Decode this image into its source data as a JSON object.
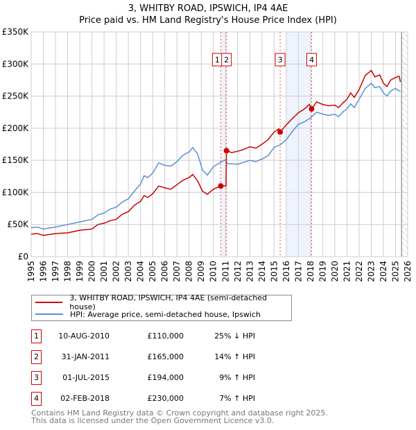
{
  "title_line1": "3, WHITBY ROAD, IPSWICH, IP4 4AE",
  "title_line2": "Price paid vs. HM Land Registry's House Price Index (HPI)",
  "colors": {
    "property": "#cc0000",
    "hpi": "#5b8fd4",
    "shade": "#eef3fc"
  },
  "chart_data": {
    "type": "line",
    "xlim": [
      1995,
      2026
    ],
    "ylim": [
      0,
      350000
    ],
    "yticks": [
      {
        "v": 0,
        "label": "£0"
      },
      {
        "v": 50000,
        "label": "£50K"
      },
      {
        "v": 100000,
        "label": "£100K"
      },
      {
        "v": 150000,
        "label": "£150K"
      },
      {
        "v": 200000,
        "label": "£200K"
      },
      {
        "v": 250000,
        "label": "£250K"
      },
      {
        "v": 300000,
        "label": "£300K"
      },
      {
        "v": 350000,
        "label": "£350K"
      }
    ],
    "xticks": [
      "1995",
      "1996",
      "1997",
      "1998",
      "1999",
      "2000",
      "2001",
      "2002",
      "2003",
      "2004",
      "2005",
      "2006",
      "2007",
      "2008",
      "2009",
      "2010",
      "2011",
      "2012",
      "2013",
      "2014",
      "2015",
      "2016",
      "2017",
      "2018",
      "2019",
      "2020",
      "2021",
      "2022",
      "2023",
      "2024",
      "2025",
      "2026"
    ],
    "grid": true,
    "shaded_ranges": [
      [
        2010.61,
        2011.08
      ],
      [
        2016.0,
        2018.09
      ]
    ],
    "forecast_hatch_from": 2025.5,
    "series": [
      {
        "name": "3, WHITBY ROAD, IPSWICH, IP4 4AE (semi-detached house)",
        "color": "#cc0000",
        "x": [
          1995,
          1995.5,
          1996,
          1997,
          1998,
          1999,
          2000,
          2000.5,
          2001,
          2001.5,
          2002,
          2002.5,
          2003,
          2003.5,
          2004,
          2004.3,
          2004.6,
          2005,
          2005.5,
          2006,
          2006.5,
          2007,
          2007.5,
          2008,
          2008.3,
          2008.7,
          2009.1,
          2009.5,
          2010,
          2010.61,
          2011.05,
          2011.08,
          2011.5,
          2012,
          2012.5,
          2013,
          2013.5,
          2014,
          2014.5,
          2015,
          2015.4,
          2015.5,
          2016,
          2016.5,
          2017,
          2017.5,
          2017.9,
          2018.09,
          2018.5,
          2019,
          2019.5,
          2020,
          2020.3,
          2020.7,
          2021,
          2021.3,
          2021.6,
          2022,
          2022.5,
          2023,
          2023.3,
          2023.7,
          2024,
          2024.3,
          2024.6,
          2025,
          2025.3,
          2025.4
        ],
        "y": [
          35,
          36,
          33,
          36,
          37,
          41,
          43,
          50,
          52,
          56,
          58,
          66,
          70,
          80,
          86,
          95,
          92,
          98,
          110,
          107,
          105,
          112,
          119,
          123,
          128,
          118,
          102,
          97,
          105,
          110,
          110,
          165,
          162,
          164,
          167,
          171,
          169,
          175,
          182,
          194,
          199,
          194,
          205,
          215,
          224,
          230,
          237,
          230,
          241,
          237,
          235,
          236,
          232,
          240,
          245,
          255,
          248,
          260,
          282,
          290,
          280,
          283,
          270,
          265,
          275,
          279,
          281,
          272
        ]
      },
      {
        "name": "HPI: Average price, semi-detached house, Ipswich",
        "color": "#5b8fd4",
        "x": [
          1995,
          1995.5,
          1996,
          1997,
          1998,
          1999,
          2000,
          2000.5,
          2001,
          2001.5,
          2002,
          2002.5,
          2003,
          2003.5,
          2004,
          2004.3,
          2004.6,
          2005,
          2005.5,
          2006,
          2006.5,
          2007,
          2007.5,
          2008,
          2008.3,
          2008.7,
          2009.1,
          2009.5,
          2010,
          2010.61,
          2011,
          2011.1,
          2012,
          2013,
          2013.5,
          2014,
          2014.5,
          2015,
          2015.5,
          2016,
          2016.5,
          2017,
          2017.5,
          2018,
          2018.5,
          2019,
          2019.5,
          2020,
          2020.3,
          2020.7,
          2021,
          2021.3,
          2021.6,
          2022,
          2022.5,
          2023,
          2023.3,
          2023.7,
          2024,
          2024.3,
          2024.6,
          2025,
          2025.4
        ],
        "y": [
          45,
          46,
          43,
          46,
          50,
          54,
          58,
          65,
          68,
          74,
          77,
          85,
          90,
          102,
          113,
          126,
          123,
          130,
          146,
          142,
          141,
          148,
          158,
          163,
          170,
          160,
          135,
          127,
          140,
          147,
          151,
          145,
          144,
          150,
          148,
          152,
          157,
          170,
          174,
          182,
          195,
          206,
          210,
          216,
          225,
          222,
          220,
          222,
          218,
          226,
          230,
          238,
          232,
          245,
          262,
          270,
          263,
          265,
          255,
          250,
          258,
          262,
          257
        ]
      }
    ],
    "sales": [
      {
        "id": "1",
        "x": 2010.61,
        "y": 110,
        "date": "10-AUG-2010",
        "price": "£110,000",
        "hpi": "25% ↓ HPI"
      },
      {
        "id": "2",
        "x": 2011.08,
        "y": 165,
        "date": "31-JAN-2011",
        "price": "£165,000",
        "hpi": "14% ↑ HPI"
      },
      {
        "id": "3",
        "x": 2015.5,
        "y": 194,
        "date": "01-JUL-2015",
        "price": "£194,000",
        "hpi": "9% ↑ HPI"
      },
      {
        "id": "4",
        "x": 2018.09,
        "y": 230,
        "date": "02-FEB-2018",
        "price": "£230,000",
        "hpi": "7% ↑ HPI"
      }
    ],
    "y_unit_note": "series y values in £K"
  },
  "legend": {
    "property": "3, WHITBY ROAD, IPSWICH, IP4 4AE (semi-detached house)",
    "hpi": "HPI: Average price, semi-detached house, Ipswich"
  },
  "footer_line1": "Contains HM Land Registry data © Crown copyright and database right 2025.",
  "footer_line2": "This data is licensed under the Open Government Licence v3.0."
}
